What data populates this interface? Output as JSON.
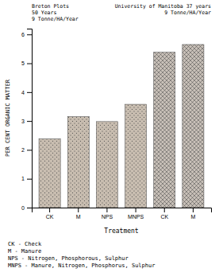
{
  "chart_data": {
    "type": "bar",
    "categories": [
      "CK",
      "M",
      "NPS",
      "MNPS",
      "CK",
      "M"
    ],
    "values": [
      2.38,
      3.15,
      2.98,
      3.58,
      5.38,
      5.65
    ],
    "colors": [
      "#c8bdb0",
      "#c8bdb0",
      "#c8bdb0",
      "#c8bdb0",
      "#c8c0b8",
      "#c8c0b8"
    ],
    "xlabel": "Treatment",
    "ylabel": "PER CENT ORGANIC MATTER",
    "ylim": [
      0,
      6.2
    ],
    "yticks": [
      0,
      1,
      2,
      3,
      4,
      5,
      6
    ],
    "annotations": [
      [
        "Breton Plots",
        "50 Years",
        "9 Tonne/HA/Year"
      ],
      [
        "University of Manitoba 37 years",
        "9 Tonne/HA/Year"
      ],
      [
        "CK - Check",
        "M - Manure",
        "NPS - Nitrogen, Phosphorous, Sulphur",
        "MNPS - Manure, Nitrogen, Phosphorus, Sulphur"
      ]
    ]
  }
}
